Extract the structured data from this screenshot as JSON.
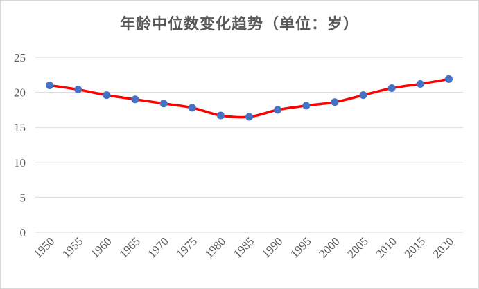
{
  "chart_data": {
    "type": "line",
    "title": "年龄中位数变化趋势（单位：岁）",
    "categories": [
      "1950",
      "1955",
      "1960",
      "1965",
      "1970",
      "1975",
      "1980",
      "1985",
      "1990",
      "1995",
      "2000",
      "2005",
      "2010",
      "2015",
      "2020"
    ],
    "series": [
      {
        "values": [
          21.0,
          20.4,
          19.6,
          19.0,
          18.4,
          17.8,
          16.7,
          16.5,
          17.5,
          18.1,
          18.6,
          19.6,
          20.6,
          21.2,
          21.9
        ]
      }
    ],
    "ylim": [
      0,
      25
    ],
    "yticks": [
      0,
      5,
      10,
      15,
      20,
      25
    ],
    "grid": true,
    "legend": "none",
    "line_color": "#ff0000",
    "marker_color": "#4472c4"
  }
}
